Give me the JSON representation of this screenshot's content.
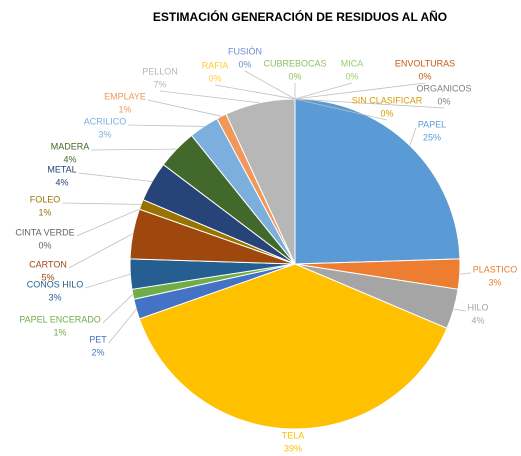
{
  "chart_data": {
    "type": "pie",
    "title": "ESTIMACIÓN  GENERACIÓN DE RESIDUOS AL AÑO",
    "categories": [
      "PAPEL",
      "PLASTICO",
      "HILO",
      "TELA",
      "PET",
      "PAPEL ENCERADO",
      "CONOS HILO",
      "CARTON",
      "CINTA VERDE",
      "FOLEO",
      "METAL",
      "MADERA",
      "ACRILICO",
      "EMPLAYE",
      "PELLON",
      "RAFIA",
      "FUSIÓN",
      "CUBREBOCAS",
      "MICA",
      "ENVOLTURAS",
      "ORGANICOS",
      "SIN CLASIFICAR"
    ],
    "values": [
      25,
      3,
      4,
      39,
      2,
      1,
      3,
      5,
      0,
      1,
      4,
      4,
      3,
      1,
      7,
      0,
      0,
      0,
      0,
      0,
      0,
      0
    ],
    "value_labels": [
      "25%",
      "3%",
      "4%",
      "39%",
      "2%",
      "1%",
      "3%",
      "5%",
      "0%",
      "1%",
      "4%",
      "4%",
      "3%",
      "1%",
      "7%",
      "0%",
      "0%",
      "0%",
      "0%",
      "0%",
      "0%",
      "0%"
    ],
    "colors": [
      "#5b9bd5",
      "#ed7d31",
      "#a5a5a5",
      "#ffc000",
      "#4472c4",
      "#70ad47",
      "#255e91",
      "#9e480e",
      "#636363",
      "#997300",
      "#264478",
      "#43682b",
      "#7cafdd",
      "#f1975a",
      "#b7b7b7",
      "#ffcd33",
      "#698ed0",
      "#8cc168",
      "#8fd16b",
      "#c55a11",
      "#7f7f7f",
      "#d59b00"
    ]
  }
}
